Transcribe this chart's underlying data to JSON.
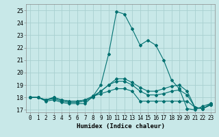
{
  "xlabel": "Humidex (Indice chaleur)",
  "ylabel": "",
  "background_color": "#c8e8e8",
  "grid_color": "#a8d0d0",
  "line_color": "#007070",
  "xlim": [
    -0.5,
    23.5
  ],
  "ylim": [
    16.8,
    25.5
  ],
  "yticks": [
    17,
    18,
    19,
    20,
    21,
    22,
    23,
    24,
    25
  ],
  "xticks": [
    0,
    1,
    2,
    3,
    4,
    5,
    6,
    7,
    8,
    9,
    10,
    11,
    12,
    13,
    14,
    15,
    16,
    17,
    18,
    19,
    20,
    21,
    22,
    23
  ],
  "lines": [
    [
      18.0,
      18.0,
      17.7,
      17.8,
      17.6,
      17.5,
      17.5,
      17.5,
      18.1,
      19.0,
      21.5,
      24.9,
      24.7,
      23.5,
      22.2,
      22.6,
      22.2,
      21.0,
      19.4,
      18.7,
      17.1,
      17.0,
      17.3,
      17.5
    ],
    [
      18.0,
      18.0,
      17.8,
      17.9,
      17.7,
      17.6,
      17.6,
      17.7,
      18.0,
      18.5,
      19.0,
      19.5,
      19.5,
      19.2,
      18.8,
      18.5,
      18.5,
      18.7,
      18.9,
      19.0,
      18.5,
      17.2,
      17.1,
      17.5
    ],
    [
      18.0,
      18.0,
      17.8,
      18.0,
      17.8,
      17.7,
      17.7,
      17.8,
      18.1,
      18.5,
      19.0,
      19.3,
      19.3,
      19.0,
      18.5,
      18.2,
      18.2,
      18.3,
      18.5,
      18.6,
      18.2,
      17.2,
      17.1,
      17.4
    ],
    [
      18.0,
      18.0,
      17.8,
      18.0,
      17.8,
      17.7,
      17.7,
      17.8,
      18.1,
      18.3,
      18.5,
      18.7,
      18.7,
      18.5,
      17.7,
      17.7,
      17.7,
      17.7,
      17.7,
      17.7,
      17.7,
      17.2,
      17.1,
      17.4
    ]
  ]
}
